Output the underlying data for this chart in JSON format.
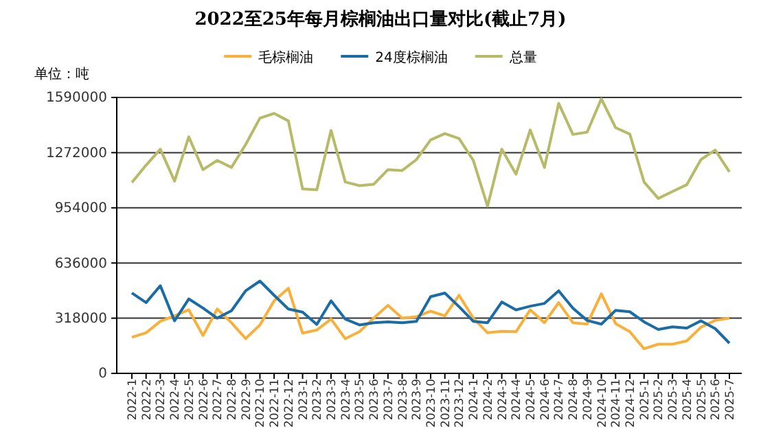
{
  "chart_data": {
    "type": "line",
    "title": "2022至25年每月棕榈油出口量对比(截止7月)",
    "ylabel": "单位：吨",
    "categories": [
      "2022-1",
      "2022-2",
      "2022-3",
      "2022-4",
      "2022-5",
      "2022-6",
      "2022-7",
      "2022-8",
      "2022-9",
      "2022-10",
      "2022-11",
      "2022-12",
      "2023-1",
      "2023-2",
      "2023-3",
      "2023-4",
      "2023-5",
      "2023-6",
      "2023-7",
      "2023-8",
      "2023-9",
      "2023-10",
      "2023-11",
      "2023-12",
      "2024-1",
      "2024-2",
      "2024-3",
      "2024-4",
      "2024-5",
      "2024-6",
      "2024-7",
      "2024-8",
      "2024-9",
      "2024-10",
      "2024-11",
      "2024-12",
      "2025-1",
      "2025-2",
      "2025-3",
      "2025-4",
      "2025-5",
      "2025-6",
      "2025-7"
    ],
    "series": [
      {
        "name": "毛棕榈油",
        "color": "#f9b03a",
        "values": [
          208000,
          234000,
          300000,
          332000,
          366000,
          218000,
          371000,
          292000,
          200000,
          279000,
          418000,
          490000,
          232000,
          250000,
          313000,
          200000,
          240000,
          318000,
          392000,
          318000,
          326000,
          358000,
          332000,
          450000,
          318000,
          234000,
          242000,
          240000,
          366000,
          292000,
          408000,
          292000,
          284000,
          458000,
          287000,
          240000,
          142000,
          168000,
          168000,
          187000,
          266000,
          305000,
          318000
        ]
      },
      {
        "name": "24度棕榈油",
        "color": "#1a6ca6",
        "values": [
          463000,
          408000,
          505000,
          303000,
          429000,
          376000,
          318000,
          361000,
          476000,
          532000,
          450000,
          371000,
          353000,
          282000,
          418000,
          313000,
          279000,
          292000,
          297000,
          292000,
          300000,
          442000,
          463000,
          384000,
          300000,
          292000,
          411000,
          366000,
          387000,
          403000,
          476000,
          376000,
          305000,
          284000,
          363000,
          355000,
          297000,
          253000,
          268000,
          261000,
          303000,
          258000,
          174000
        ]
      },
      {
        "name": "总量",
        "color": "#b7ba66",
        "values": [
          1100000,
          1200000,
          1292000,
          1108000,
          1363000,
          1174000,
          1227000,
          1187000,
          1319000,
          1471000,
          1498000,
          1455000,
          1063000,
          1058000,
          1400000,
          1103000,
          1082000,
          1090000,
          1174000,
          1169000,
          1232000,
          1345000,
          1382000,
          1353000,
          1227000,
          963000,
          1292000,
          1148000,
          1403000,
          1187000,
          1556000,
          1377000,
          1390000,
          1582000,
          1416000,
          1379000,
          1103000,
          1008000,
          1048000,
          1087000,
          1232000,
          1287000,
          1161000
        ]
      }
    ],
    "ylim": [
      0,
      1590000
    ],
    "yticks": [
      0,
      318000,
      636000,
      954000,
      1272000,
      1590000
    ],
    "grid": "y",
    "legend": "top",
    "marker": "none",
    "line_style": "solid"
  }
}
